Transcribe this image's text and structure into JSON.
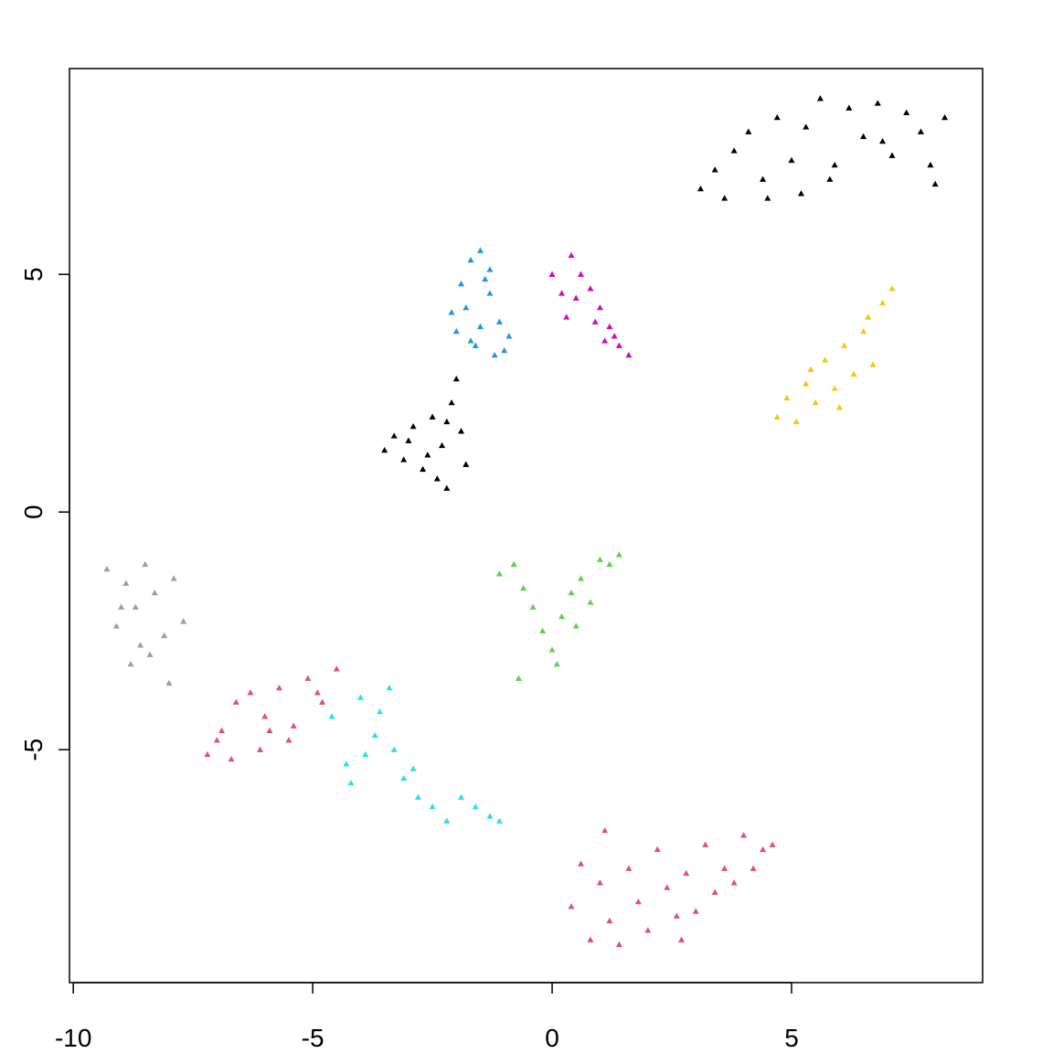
{
  "chart_data": {
    "type": "scatter",
    "xlim": [
      -10.08,
      8.99
    ],
    "ylim": [
      -9.9,
      9.33
    ],
    "xticks": [
      -10,
      -5,
      0,
      5
    ],
    "yticks": [
      -5,
      0,
      5
    ],
    "grid": false,
    "series": [
      {
        "color": "#000000",
        "x": [
          3.1,
          3.4,
          3.8,
          4.1,
          4.4,
          4.7,
          5.0,
          5.3,
          5.6,
          5.9,
          6.2,
          6.5,
          6.8,
          7.1,
          7.4,
          7.7,
          8.0,
          8.2,
          4.5,
          5.8,
          6.9,
          3.6,
          7.9,
          5.2
        ],
        "values": [
          6.8,
          7.2,
          7.6,
          8.0,
          7.0,
          8.3,
          7.4,
          8.1,
          8.7,
          7.3,
          8.5,
          7.9,
          8.6,
          7.5,
          8.4,
          8.0,
          6.9,
          8.3,
          6.6,
          7.0,
          7.8,
          6.6,
          7.3,
          6.7
        ]
      },
      {
        "color": "#2297E6",
        "x": [
          -2.1,
          -1.9,
          -1.7,
          -1.5,
          -1.3,
          -1.1,
          -0.9,
          -1.6,
          -1.2,
          -2.0,
          -1.4,
          -1.8,
          -1.0,
          -1.5,
          -1.3,
          -1.7
        ],
        "values": [
          4.2,
          4.8,
          5.3,
          5.5,
          4.6,
          4.0,
          3.7,
          3.5,
          3.3,
          3.8,
          4.9,
          4.3,
          3.4,
          3.9,
          5.1,
          3.6
        ]
      },
      {
        "color": "#CD0BBC",
        "x": [
          0.0,
          0.2,
          0.4,
          0.6,
          0.8,
          1.0,
          1.2,
          1.4,
          1.6,
          0.3,
          0.9,
          1.3,
          0.5,
          1.1
        ],
        "values": [
          5.0,
          4.6,
          5.4,
          5.0,
          4.7,
          4.3,
          3.9,
          3.5,
          3.3,
          4.1,
          4.0,
          3.7,
          4.5,
          3.6
        ]
      },
      {
        "color": "#000000",
        "x": [
          -3.5,
          -3.3,
          -3.1,
          -2.9,
          -2.7,
          -2.5,
          -2.3,
          -2.1,
          -1.9,
          -1.8,
          -2.2,
          -2.6,
          -3.0,
          -2.4,
          -2.0,
          -2.2
        ],
        "values": [
          1.3,
          1.6,
          1.1,
          1.8,
          0.9,
          2.0,
          1.4,
          2.3,
          1.7,
          1.0,
          0.5,
          1.2,
          1.5,
          0.7,
          2.8,
          1.9
        ]
      },
      {
        "color": "#F5C710",
        "x": [
          4.7,
          4.9,
          5.1,
          5.3,
          5.5,
          5.7,
          5.9,
          6.1,
          6.3,
          6.5,
          6.7,
          6.9,
          7.1,
          5.4,
          6.0,
          6.6
        ],
        "values": [
          2.0,
          2.4,
          1.9,
          2.7,
          2.3,
          3.2,
          2.6,
          3.5,
          2.9,
          3.8,
          3.1,
          4.4,
          4.7,
          3.0,
          2.2,
          4.1
        ]
      },
      {
        "color": "#61D04F",
        "x": [
          -1.1,
          -0.8,
          -0.6,
          -0.4,
          -0.2,
          0.0,
          0.2,
          0.4,
          0.6,
          0.8,
          1.0,
          1.2,
          1.4,
          -0.7,
          0.1,
          0.5
        ],
        "values": [
          -1.3,
          -1.1,
          -1.6,
          -2.0,
          -2.5,
          -2.9,
          -2.2,
          -1.7,
          -1.4,
          -1.9,
          -1.0,
          -1.1,
          -0.9,
          -3.5,
          -3.2,
          -2.4
        ]
      },
      {
        "color": "#9E9E9E",
        "x": [
          -9.3,
          -9.1,
          -8.9,
          -8.7,
          -8.5,
          -8.3,
          -8.1,
          -7.9,
          -7.7,
          -8.8,
          -8.4,
          -8.0,
          -9.0,
          -8.6
        ],
        "values": [
          -1.2,
          -2.4,
          -1.5,
          -2.0,
          -1.1,
          -1.7,
          -2.6,
          -1.4,
          -2.3,
          -3.2,
          -3.0,
          -3.6,
          -2.0,
          -2.8
        ]
      },
      {
        "color": "#DF536B",
        "x": [
          -7.2,
          -6.9,
          -6.6,
          -6.3,
          -6.0,
          -5.7,
          -5.4,
          -5.1,
          -4.8,
          -4.5,
          -6.7,
          -6.1,
          -5.5,
          -4.9,
          -7.0,
          -5.9
        ],
        "values": [
          -5.1,
          -4.6,
          -4.0,
          -3.8,
          -4.3,
          -3.7,
          -4.5,
          -3.5,
          -4.0,
          -3.3,
          -5.2,
          -5.0,
          -4.8,
          -3.8,
          -4.8,
          -4.6
        ]
      },
      {
        "color": "#28E2E5",
        "x": [
          -4.6,
          -4.3,
          -4.0,
          -3.7,
          -3.4,
          -3.1,
          -2.8,
          -2.5,
          -2.2,
          -1.9,
          -1.6,
          -1.3,
          -3.9,
          -3.3,
          -4.2,
          -3.6,
          -2.9,
          -1.1
        ],
        "values": [
          -4.3,
          -5.3,
          -3.9,
          -4.7,
          -3.7,
          -5.6,
          -6.0,
          -6.2,
          -6.5,
          -6.0,
          -6.2,
          -6.4,
          -5.1,
          -5.0,
          -5.7,
          -4.2,
          -5.4,
          -6.5
        ]
      },
      {
        "color": "#DF536B",
        "x": [
          0.4,
          0.6,
          0.8,
          1.0,
          1.2,
          1.4,
          1.6,
          1.8,
          2.0,
          2.2,
          2.4,
          2.6,
          2.8,
          3.0,
          3.2,
          3.4,
          3.6,
          3.8,
          4.0,
          4.2,
          4.4,
          4.6,
          1.1,
          2.7
        ],
        "values": [
          -8.3,
          -7.4,
          -9.0,
          -7.8,
          -8.6,
          -9.1,
          -7.5,
          -8.2,
          -8.8,
          -7.1,
          -7.9,
          -8.5,
          -7.6,
          -8.4,
          -7.0,
          -8.0,
          -7.5,
          -7.8,
          -6.8,
          -7.5,
          -7.1,
          -7.0,
          -6.7,
          -9.0
        ]
      }
    ]
  }
}
